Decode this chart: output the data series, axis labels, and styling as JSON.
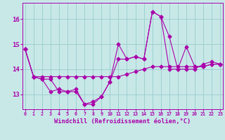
{
  "xlabel": "Windchill (Refroidissement éolien,°C)",
  "x": [
    0,
    1,
    2,
    3,
    4,
    5,
    6,
    7,
    8,
    9,
    10,
    11,
    12,
    13,
    14,
    15,
    16,
    17,
    18,
    19,
    20,
    21,
    22,
    23
  ],
  "line1": [
    14.8,
    13.7,
    13.7,
    13.7,
    13.7,
    13.7,
    13.7,
    13.7,
    13.7,
    13.7,
    13.7,
    13.7,
    13.8,
    13.9,
    14.0,
    14.1,
    14.1,
    14.1,
    14.1,
    14.1,
    14.1,
    14.1,
    14.2,
    14.2
  ],
  "line2": [
    14.8,
    13.7,
    13.6,
    13.1,
    13.2,
    13.1,
    13.1,
    12.6,
    12.6,
    12.9,
    13.5,
    15.0,
    14.4,
    14.5,
    14.4,
    16.3,
    16.1,
    15.3,
    14.0,
    14.9,
    14.1,
    14.1,
    14.2,
    14.2
  ],
  "line3": [
    14.8,
    13.7,
    13.6,
    13.6,
    13.1,
    13.1,
    13.2,
    12.6,
    12.7,
    12.9,
    13.5,
    14.4,
    14.4,
    14.5,
    14.4,
    16.3,
    16.1,
    14.0,
    14.0,
    14.0,
    14.0,
    14.2,
    14.3,
    14.2
  ],
  "background_color": "#c8e8e8",
  "line_color": "#aa00aa",
  "grid_color": "#99cccc",
  "ylim_min": 12.4,
  "ylim_max": 16.65,
  "xlim_min": -0.3,
  "xlim_max": 23.3,
  "yticks": [
    13,
    14,
    15,
    16
  ],
  "xticks": [
    0,
    1,
    2,
    3,
    4,
    5,
    6,
    7,
    8,
    9,
    10,
    11,
    12,
    13,
    14,
    15,
    16,
    17,
    18,
    19,
    20,
    21,
    22,
    23
  ]
}
